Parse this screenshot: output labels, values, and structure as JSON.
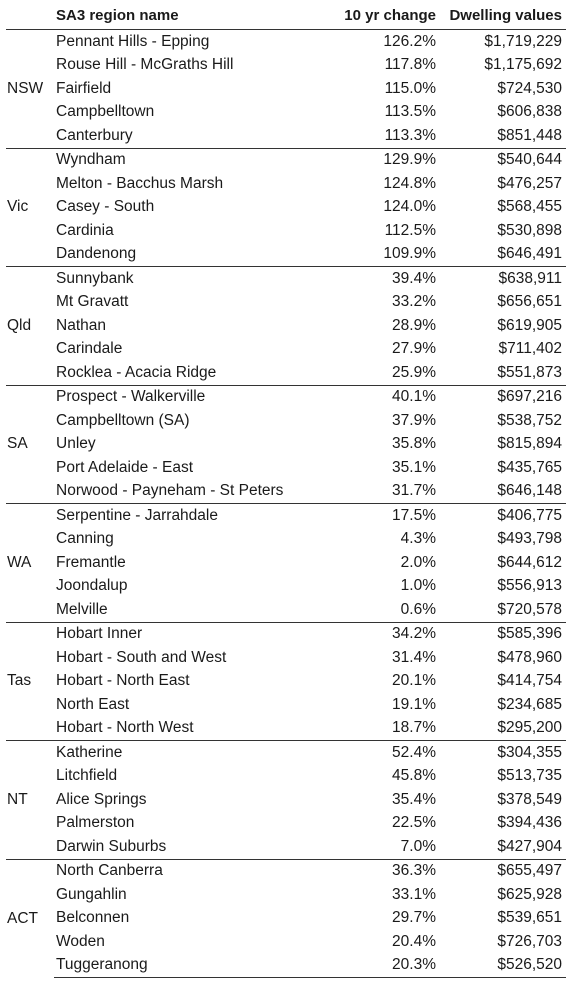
{
  "table": {
    "headers": {
      "state": "",
      "name": "SA3 region name",
      "change": "10 yr change",
      "value": "Dwelling values"
    },
    "groups": [
      {
        "state": "NSW",
        "rows": [
          {
            "name": "Pennant Hills - Epping",
            "change": "126.2%",
            "value": "$1,719,229"
          },
          {
            "name": "Rouse Hill - McGraths Hill",
            "change": "117.8%",
            "value": "$1,175,692"
          },
          {
            "name": "Fairfield",
            "change": "115.0%",
            "value": "$724,530"
          },
          {
            "name": "Campbelltown",
            "change": "113.5%",
            "value": "$606,838"
          },
          {
            "name": "Canterbury",
            "change": "113.3%",
            "value": "$851,448"
          }
        ]
      },
      {
        "state": "Vic",
        "rows": [
          {
            "name": "Wyndham",
            "change": "129.9%",
            "value": "$540,644"
          },
          {
            "name": "Melton - Bacchus Marsh",
            "change": "124.8%",
            "value": "$476,257"
          },
          {
            "name": "Casey - South",
            "change": "124.0%",
            "value": "$568,455"
          },
          {
            "name": "Cardinia",
            "change": "112.5%",
            "value": "$530,898"
          },
          {
            "name": "Dandenong",
            "change": "109.9%",
            "value": "$646,491"
          }
        ]
      },
      {
        "state": "Qld",
        "rows": [
          {
            "name": "Sunnybank",
            "change": "39.4%",
            "value": "$638,911"
          },
          {
            "name": "Mt Gravatt",
            "change": "33.2%",
            "value": "$656,651"
          },
          {
            "name": "Nathan",
            "change": "28.9%",
            "value": "$619,905"
          },
          {
            "name": "Carindale",
            "change": "27.9%",
            "value": "$711,402"
          },
          {
            "name": "Rocklea - Acacia Ridge",
            "change": "25.9%",
            "value": "$551,873"
          }
        ]
      },
      {
        "state": "SA",
        "rows": [
          {
            "name": "Prospect - Walkerville",
            "change": "40.1%",
            "value": "$697,216"
          },
          {
            "name": "Campbelltown (SA)",
            "change": "37.9%",
            "value": "$538,752"
          },
          {
            "name": "Unley",
            "change": "35.8%",
            "value": "$815,894"
          },
          {
            "name": "Port Adelaide - East",
            "change": "35.1%",
            "value": "$435,765"
          },
          {
            "name": "Norwood - Payneham - St Peters",
            "change": "31.7%",
            "value": "$646,148"
          }
        ]
      },
      {
        "state": "WA",
        "rows": [
          {
            "name": "Serpentine - Jarrahdale",
            "change": "17.5%",
            "value": "$406,775"
          },
          {
            "name": "Canning",
            "change": "4.3%",
            "value": "$493,798"
          },
          {
            "name": "Fremantle",
            "change": "2.0%",
            "value": "$644,612"
          },
          {
            "name": "Joondalup",
            "change": "1.0%",
            "value": "$556,913"
          },
          {
            "name": "Melville",
            "change": "0.6%",
            "value": "$720,578"
          }
        ]
      },
      {
        "state": "Tas",
        "rows": [
          {
            "name": "Hobart Inner",
            "change": "34.2%",
            "value": "$585,396"
          },
          {
            "name": "Hobart - South and West",
            "change": "31.4%",
            "value": "$478,960"
          },
          {
            "name": "Hobart - North East",
            "change": "20.1%",
            "value": "$414,754"
          },
          {
            "name": "North East",
            "change": "19.1%",
            "value": "$234,685"
          },
          {
            "name": "Hobart - North West",
            "change": "18.7%",
            "value": "$295,200"
          }
        ]
      },
      {
        "state": "NT",
        "rows": [
          {
            "name": "Katherine",
            "change": "52.4%",
            "value": "$304,355"
          },
          {
            "name": "Litchfield",
            "change": "45.8%",
            "value": "$513,735"
          },
          {
            "name": "Alice Springs",
            "change": "35.4%",
            "value": "$378,549"
          },
          {
            "name": "Palmerston",
            "change": "22.5%",
            "value": "$394,436"
          },
          {
            "name": "Darwin Suburbs",
            "change": "7.0%",
            "value": "$427,904"
          }
        ]
      },
      {
        "state": "ACT",
        "rows": [
          {
            "name": "North Canberra",
            "change": "36.3%",
            "value": "$655,497"
          },
          {
            "name": "Gungahlin",
            "change": "33.1%",
            "value": "$625,928"
          },
          {
            "name": "Belconnen",
            "change": "29.7%",
            "value": "$539,651"
          },
          {
            "name": "Woden",
            "change": "20.4%",
            "value": "$726,703"
          },
          {
            "name": "Tuggeranong",
            "change": "20.3%",
            "value": "$526,520"
          }
        ]
      }
    ]
  }
}
